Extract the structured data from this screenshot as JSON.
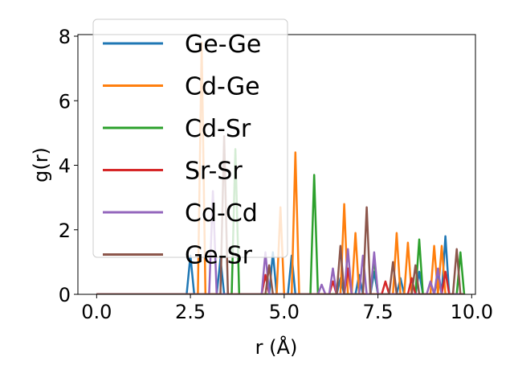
{
  "chart_data": {
    "type": "line",
    "title": "",
    "xlabel": "r (Å)",
    "ylabel": "g(r)",
    "xlim": [
      -0.5,
      10.1
    ],
    "ylim": [
      0,
      8.05
    ],
    "xticks": [
      0.0,
      2.5,
      5.0,
      7.5,
      10.0
    ],
    "xtick_labels": [
      "0.0",
      "2.5",
      "5.0",
      "7.5",
      "10.0"
    ],
    "yticks": [
      0,
      2,
      4,
      6,
      8
    ],
    "ytick_labels": [
      "0",
      "2",
      "4",
      "6",
      "8"
    ],
    "grid": false,
    "legend_position": "top-left",
    "series": [
      {
        "name": "Ge-Ge",
        "color": "#1f77b4",
        "x": [
          0,
          2.4,
          2.5,
          2.6,
          3.2,
          3.3,
          3.4,
          4.6,
          4.7,
          4.8,
          5.1,
          5.2,
          5.3,
          6.4,
          6.5,
          6.6,
          6.9,
          7.0,
          7.1,
          7.3,
          7.4,
          7.5,
          8.0,
          8.1,
          8.2,
          8.5,
          8.6,
          8.7,
          9.0,
          9.1,
          9.2,
          9.3,
          9.4,
          9.5,
          9.8
        ],
        "y": [
          0,
          0,
          1.2,
          0,
          0,
          1.1,
          0,
          0,
          1.3,
          0,
          0,
          1.2,
          0,
          0,
          0.5,
          0,
          0,
          0.6,
          0,
          0,
          0.7,
          0,
          0,
          0.5,
          0,
          0,
          0.7,
          0,
          0,
          0.6,
          0,
          1.8,
          0,
          0,
          0
        ]
      },
      {
        "name": "Cd-Ge",
        "color": "#ff7f0e",
        "x": [
          0,
          2.7,
          2.8,
          2.9,
          4.8,
          4.9,
          5.0,
          5.2,
          5.3,
          5.4,
          6.5,
          6.6,
          6.7,
          6.8,
          6.9,
          7.0,
          7.9,
          8.0,
          8.1,
          8.2,
          8.3,
          8.4,
          8.9,
          9.0,
          9.1,
          9.2,
          9.3,
          9.4,
          9.8
        ],
        "y": [
          0,
          0,
          7.8,
          0,
          0,
          2.7,
          0,
          0,
          4.4,
          0,
          0,
          2.8,
          0,
          0,
          1.9,
          0,
          0,
          1.9,
          0,
          0,
          1.6,
          0,
          0,
          1.5,
          0,
          1.5,
          0,
          0,
          0
        ]
      },
      {
        "name": "Cd-Sr",
        "color": "#2ca02c",
        "x": [
          0,
          3.6,
          3.7,
          3.8,
          5.7,
          5.8,
          5.9,
          7.3,
          7.4,
          7.5,
          8.5,
          8.6,
          8.7,
          9.6,
          9.7,
          9.8
        ],
        "y": [
          0,
          0,
          4.5,
          0,
          0,
          3.7,
          0,
          0,
          1.1,
          0,
          0,
          1.7,
          0,
          0,
          1.3,
          0
        ]
      },
      {
        "name": "Sr-Sr",
        "color": "#d62728",
        "x": [
          0,
          4.4,
          4.5,
          4.6,
          6.2,
          6.3,
          6.4,
          6.6,
          6.7,
          6.8,
          7.6,
          7.7,
          7.8,
          8.3,
          8.4,
          8.5,
          9.2,
          9.3,
          9.4,
          9.8
        ],
        "y": [
          0,
          0,
          0.6,
          0,
          0,
          0.4,
          0,
          0,
          0.8,
          0,
          0,
          0.4,
          0,
          0,
          0.5,
          0,
          0,
          0.7,
          0,
          0
        ]
      },
      {
        "name": "Cd-Cd",
        "color": "#9467bd",
        "x": [
          0,
          3.0,
          3.1,
          3.2,
          4.4,
          4.5,
          4.6,
          5.9,
          6.0,
          6.1,
          6.2,
          6.3,
          6.4,
          6.6,
          6.7,
          6.8,
          7.0,
          7.1,
          7.2,
          7.3,
          7.4,
          7.5,
          8.8,
          8.9,
          9.0,
          9.1,
          9.2,
          9.3,
          9.8
        ],
        "y": [
          0,
          0,
          3.2,
          0,
          0,
          1.3,
          0,
          0,
          0.3,
          0,
          0,
          0.8,
          0,
          0,
          1.4,
          0,
          0,
          1.2,
          0,
          0,
          1.3,
          0,
          0,
          0.4,
          0,
          0.8,
          0,
          0,
          0
        ]
      },
      {
        "name": "Ge-Sr",
        "color": "#8c564b",
        "x": [
          0,
          3.3,
          3.4,
          3.5,
          4.5,
          4.6,
          4.7,
          6.4,
          6.5,
          6.6,
          7.1,
          7.2,
          7.3,
          7.8,
          7.9,
          8.0,
          8.4,
          8.5,
          8.6,
          9.5,
          9.6,
          9.7,
          9.8
        ],
        "y": [
          0,
          0,
          4.9,
          0,
          0,
          0.9,
          0,
          0,
          1.5,
          0,
          0,
          2.7,
          0,
          0,
          1.0,
          0,
          0,
          0.9,
          0,
          0,
          1.4,
          0,
          0
        ]
      }
    ]
  }
}
